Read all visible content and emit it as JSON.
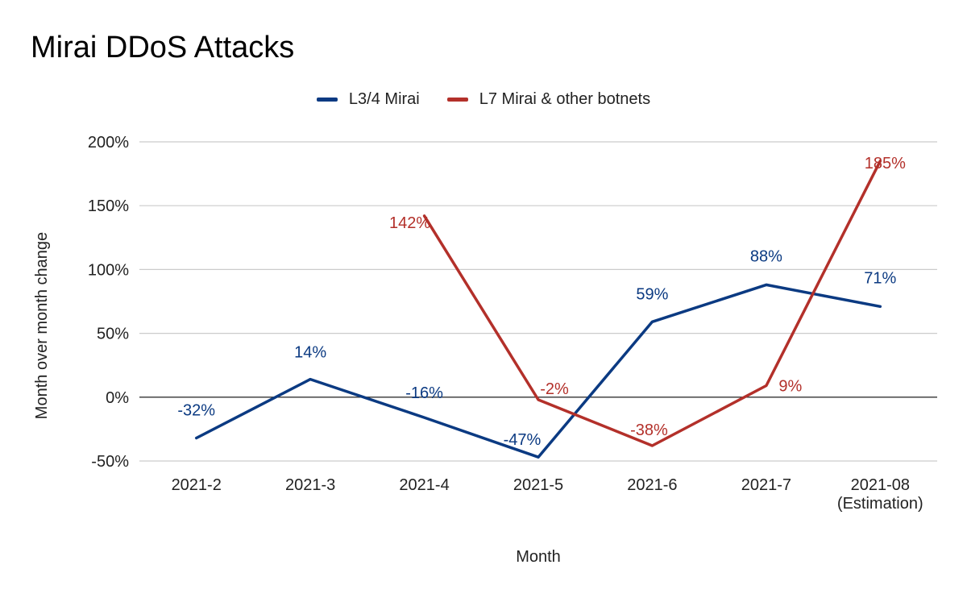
{
  "chart_data": {
    "type": "line",
    "title": "Mirai DDoS Attacks",
    "xlabel": "Month",
    "ylabel": "Month over month change",
    "categories": [
      "2021-2",
      "2021-3",
      "2021-4",
      "2021-5",
      "2021-6",
      "2021-7",
      "2021-08\n(Estimation)"
    ],
    "ylim": [
      -50,
      200
    ],
    "yticks": [
      -50,
      0,
      50,
      100,
      150,
      200
    ],
    "ytick_labels": [
      "-50%",
      "0%",
      "50%",
      "100%",
      "150%",
      "200%"
    ],
    "grid": true,
    "legend_position": "top-center",
    "series": [
      {
        "name": "L3/4 Mirai",
        "color": "#0b3a82",
        "values": [
          -32,
          14,
          -16,
          -47,
          59,
          88,
          71
        ],
        "labels": [
          "-32%",
          "14%",
          "-16%",
          "-47%",
          "59%",
          "88%",
          "71%"
        ]
      },
      {
        "name": "L7 Mirai & other botnets",
        "color": "#b3302a",
        "values": [
          null,
          null,
          142,
          -2,
          -38,
          9,
          185
        ],
        "labels": [
          null,
          null,
          "142%",
          "-2%",
          "-38%",
          "9%",
          "185%"
        ]
      }
    ]
  }
}
